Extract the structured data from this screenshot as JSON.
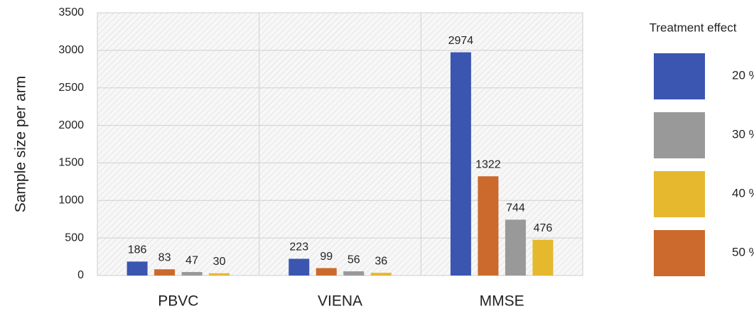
{
  "chart_data": {
    "type": "bar",
    "y_label": "Sample size per arm",
    "categories": [
      "PBVC",
      "VIENA",
      "MMSE"
    ],
    "legend_title": "Treatment effect",
    "series": [
      {
        "name": "20 %",
        "color": "#3b56b0",
        "values": [
          186,
          223,
          2974
        ]
      },
      {
        "name": "50 %",
        "color": "#cb6a2c",
        "values": [
          83,
          99,
          1322
        ]
      },
      {
        "name": "30 %",
        "color": "#999999",
        "values": [
          47,
          56,
          744
        ]
      },
      {
        "name": "40 %",
        "color": "#e6b82e",
        "values": [
          30,
          36,
          476
        ]
      }
    ],
    "ylim": [
      0,
      3500
    ],
    "yticks": [
      0,
      500,
      1000,
      1500,
      2000,
      2500,
      3000,
      3500
    ],
    "grid": true
  }
}
